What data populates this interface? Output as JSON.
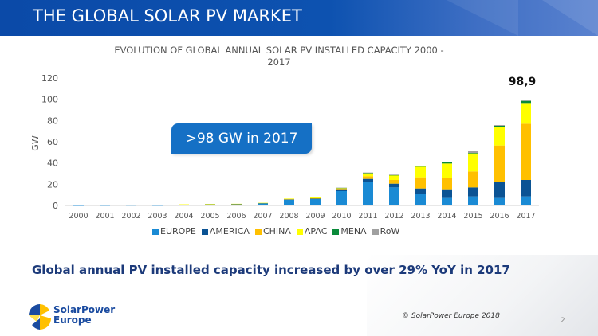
{
  "header": {
    "title": "THE GLOBAL SOLAR PV MARKET"
  },
  "callout": "> 98 GW in 2017",
  "callout_text": ">98 GW in 2017",
  "headline": "Global annual PV installed capacity increased by over 29% YoY in 2017",
  "footer": {
    "logo_line1": "SolarPower",
    "logo_line2": "Europe",
    "copyright": "© SolarPower Europe 2018",
    "page_number": "2"
  },
  "colors": {
    "header_blue": "#0d52b0",
    "europe": "#1a8ad4",
    "america": "#0b5394",
    "china": "#ffc000",
    "apac": "#ffff00",
    "mena": "#0a8a3a",
    "row": "#a0a0a0"
  },
  "chart_data": {
    "type": "bar",
    "stacked": true,
    "title": "EVOLUTION OF GLOBAL ANNUAL SOLAR PV INSTALLED CAPACITY 2000 - 2017",
    "title_line1": "EVOLUTION OF GLOBAL ANNUAL SOLAR PV INSTALLED CAPACITY 2000 -",
    "title_line2": "2017",
    "xlabel": "",
    "ylabel": "GW",
    "ylim": [
      0,
      120
    ],
    "yticks": [
      "0",
      "20",
      "40",
      "60",
      "80",
      "100",
      "120"
    ],
    "grid": false,
    "legend_position": "bottom",
    "categories": [
      "2000",
      "2001",
      "2002",
      "2003",
      "2004",
      "2005",
      "2006",
      "2007",
      "2008",
      "2009",
      "2010",
      "2011",
      "2012",
      "2013",
      "2014",
      "2015",
      "2016",
      "2017"
    ],
    "series": [
      {
        "name": "EUROPE",
        "color": "#1a8ad4",
        "values": [
          0.1,
          0.2,
          0.3,
          0.2,
          0.7,
          1.0,
          1.0,
          2.0,
          5.5,
          6.0,
          13.5,
          22.5,
          17.0,
          10.5,
          7.0,
          8.5,
          7.0,
          8.5
        ]
      },
      {
        "name": "AMERICA",
        "color": "#0b5394",
        "values": [
          0,
          0,
          0,
          0,
          0.1,
          0.1,
          0.2,
          0.3,
          0.5,
          0.6,
          1.0,
          2.5,
          3.5,
          5.5,
          7.5,
          8.5,
          15.0,
          15.5
        ]
      },
      {
        "name": "CHINA",
        "color": "#ffc000",
        "values": [
          0,
          0,
          0,
          0,
          0,
          0,
          0,
          0,
          0.1,
          0.2,
          0.5,
          2.5,
          3.5,
          10.5,
          11.0,
          15.0,
          34.5,
          53.0
        ]
      },
      {
        "name": "APAC",
        "color": "#ffff00",
        "values": [
          0,
          0,
          0,
          0,
          0.3,
          0.3,
          0.4,
          0.2,
          0.4,
          0.7,
          1.5,
          3.0,
          4.5,
          10.0,
          14.0,
          17.0,
          17.0,
          19.5
        ]
      },
      {
        "name": "MENA",
        "color": "#0a8a3a",
        "values": [
          0,
          0,
          0,
          0,
          0,
          0,
          0,
          0,
          0,
          0,
          0.1,
          0.1,
          0.2,
          0.5,
          1.0,
          0.5,
          1.5,
          2.0
        ]
      },
      {
        "name": "RoW",
        "color": "#a0a0a0",
        "values": [
          0,
          0,
          0,
          0,
          0,
          0,
          0,
          0,
          0,
          0,
          0.1,
          0.4,
          0.3,
          0,
          0,
          1.5,
          0.7,
          0.4
        ]
      }
    ],
    "annotations": [
      {
        "category": "2017",
        "text": "98,9"
      }
    ]
  }
}
